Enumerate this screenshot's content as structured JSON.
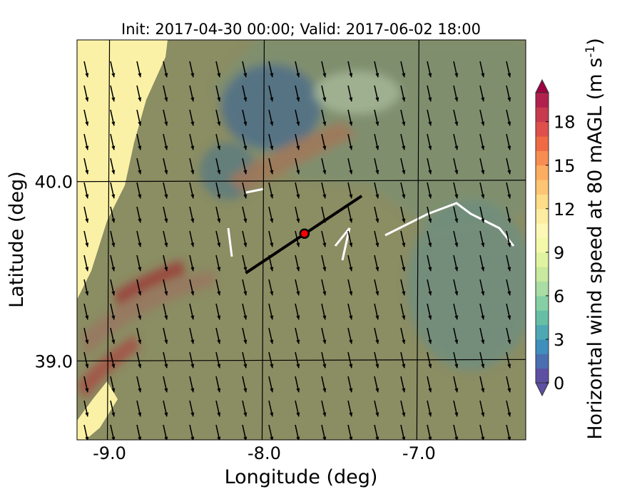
{
  "chart_data": {
    "type": "heatmap",
    "title": "Init: 2017-04-30 00:00; Valid: 2017-06-02 18:00",
    "xlabel": "Longitude (deg)",
    "ylabel": "Latitude (deg)",
    "xlim": [
      -9.21,
      -6.31
    ],
    "ylim": [
      38.56,
      40.79
    ],
    "xticks": [
      -9.0,
      -8.0,
      -7.0
    ],
    "xtick_labels": [
      "-9.0",
      "-8.0",
      "-7.0"
    ],
    "yticks": [
      39.0,
      40.0
    ],
    "ytick_labels": [
      "39.0",
      "40.0"
    ],
    "grid": true,
    "colorbar": {
      "label_main": "Horizontal wind speed at 80 mAGL (m s",
      "label_exp": "-1",
      "label_close": ")",
      "min": 0,
      "max": 20,
      "step": 1,
      "extend": "both",
      "ticks": [
        0,
        3,
        6,
        9,
        12,
        15,
        18
      ],
      "tick_labels": [
        "0",
        "3",
        "6",
        "9",
        "12",
        "15",
        "18"
      ],
      "colors": [
        "#5e4fa2",
        "#4a6fb0",
        "#3f8fbd",
        "#4ea8b4",
        "#66bfa4",
        "#86cfa5",
        "#a9dda3",
        "#c8e99e",
        "#e0f3a0",
        "#f3f9a9",
        "#fdf8b6",
        "#feeda0",
        "#fedc88",
        "#fdc573",
        "#fdad60",
        "#f88d52",
        "#ef6a44",
        "#df4f4c",
        "#c83a4d",
        "#b2204d",
        "#9e0142"
      ]
    },
    "cross_section": {
      "start": [
        -8.12,
        39.49
      ],
      "end": [
        -7.37,
        39.92
      ]
    },
    "site": {
      "lon": -7.74,
      "lat": 39.71,
      "color": "#ff0000"
    },
    "wind_direction_note_deg": 160
  }
}
